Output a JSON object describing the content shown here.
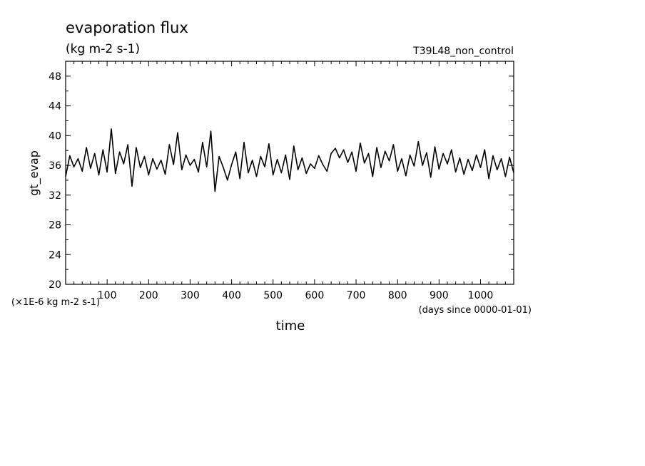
{
  "chart_data": {
    "type": "line",
    "title": "evaporation flux",
    "subtitle": "(kg m-2 s-1)",
    "run_label": "T39L48_non_control",
    "xlabel": "time",
    "x_units": "(days since 0000-01-01)",
    "ylabel": "gt_evap",
    "y_units": "(×1E-6 kg m-2 s-1)",
    "xlim": [
      0,
      1080
    ],
    "ylim": [
      20,
      50
    ],
    "x_ticks": [
      100,
      200,
      300,
      400,
      500,
      600,
      700,
      800,
      900,
      1000
    ],
    "y_ticks": [
      20,
      24,
      28,
      32,
      36,
      40,
      44,
      48
    ],
    "grid": false,
    "series": [
      {
        "color": "#000000",
        "x": [
          0,
          10,
          20,
          30,
          40,
          50,
          60,
          70,
          80,
          90,
          100,
          110,
          120,
          130,
          140,
          150,
          160,
          170,
          180,
          190,
          200,
          210,
          220,
          230,
          240,
          250,
          260,
          270,
          280,
          290,
          300,
          310,
          320,
          330,
          340,
          350,
          360,
          370,
          380,
          390,
          400,
          410,
          420,
          430,
          440,
          450,
          460,
          470,
          480,
          490,
          500,
          510,
          520,
          530,
          540,
          550,
          560,
          570,
          580,
          590,
          600,
          610,
          620,
          630,
          640,
          650,
          660,
          670,
          680,
          690,
          700,
          710,
          720,
          730,
          740,
          750,
          760,
          770,
          780,
          790,
          800,
          810,
          820,
          830,
          840,
          850,
          860,
          870,
          880,
          890,
          900,
          910,
          920,
          930,
          940,
          950,
          960,
          970,
          980,
          990,
          1000,
          1010,
          1020,
          1030,
          1040,
          1050,
          1060,
          1070,
          1080
        ],
        "y": [
          34.5,
          37.3,
          35.8,
          36.9,
          35.2,
          38.4,
          35.6,
          37.6,
          34.7,
          38.1,
          35.1,
          40.9,
          34.9,
          37.8,
          36.2,
          38.8,
          33.2,
          38.4,
          35.7,
          37.2,
          34.7,
          36.9,
          35.5,
          36.7,
          34.8,
          38.8,
          36.1,
          40.4,
          35.4,
          37.4,
          36.0,
          36.8,
          35.1,
          39.1,
          35.8,
          40.6,
          32.5,
          37.2,
          35.7,
          34.0,
          36.1,
          37.8,
          34.2,
          39.1,
          35.0,
          36.7,
          34.5,
          37.2,
          35.8,
          38.9,
          34.7,
          36.8,
          35.0,
          37.4,
          34.1,
          38.6,
          35.4,
          37.0,
          34.9,
          36.2,
          35.6,
          37.3,
          36.1,
          35.2,
          37.6,
          38.3,
          37.0,
          38.1,
          36.4,
          37.8,
          35.2,
          39.0,
          36.3,
          37.6,
          34.5,
          38.4,
          35.7,
          37.9,
          36.6,
          38.8,
          35.2,
          36.9,
          34.6,
          37.4,
          35.9,
          39.2,
          36.0,
          37.7,
          34.4,
          38.5,
          35.5,
          37.6,
          36.2,
          38.1,
          35.1,
          37.0,
          34.8,
          36.8,
          35.3,
          37.4,
          35.7,
          38.1,
          34.2,
          37.3,
          35.4,
          36.9,
          34.5,
          37.1,
          35.0
        ]
      }
    ]
  }
}
